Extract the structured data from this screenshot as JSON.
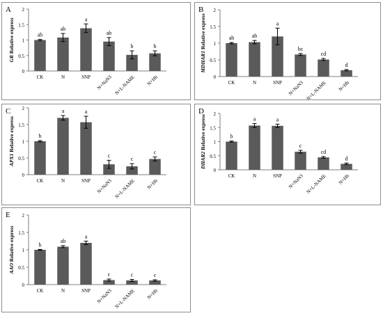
{
  "chart_data": [
    {
      "type": "bar",
      "panel_label": "A",
      "ylabel": "GR Relative express",
      "ylabel_italic_part": "GR",
      "ylabel_rest": " Relative express",
      "categories": [
        "CK",
        "N",
        "SNP",
        "N+NaN3",
        "N+L-NAME",
        "N+Hb"
      ],
      "values": [
        1.0,
        1.08,
        1.38,
        0.95,
        0.52,
        0.57
      ],
      "errors": [
        0.02,
        0.13,
        0.14,
        0.13,
        0.13,
        0.08
      ],
      "letters": [
        "ab",
        "ab",
        "a",
        "ab",
        "b",
        "b"
      ],
      "ylim": [
        0,
        2
      ],
      "yticks": [
        "0",
        "0.5",
        "1",
        "1.5",
        "2"
      ],
      "ytick_values": [
        0,
        0.5,
        1,
        1.5,
        2
      ]
    },
    {
      "type": "bar",
      "panel_label": "B",
      "ylabel": "MDHAR1 Relative express",
      "ylabel_italic_part": "MDHAR1",
      "ylabel_rest": " Relative express",
      "categories": [
        "CK",
        "N",
        "SNP",
        "N+NaN3",
        "N+L-NAME",
        "N+Hb"
      ],
      "values": [
        1.0,
        1.03,
        1.2,
        0.66,
        0.51,
        0.19
      ],
      "errors": [
        0.02,
        0.05,
        0.25,
        0.03,
        0.03,
        0.02
      ],
      "letters": [
        "ab",
        "ab",
        "a",
        "bc",
        "cd",
        "d"
      ],
      "ylim": [
        0,
        2
      ],
      "yticks": [
        "0",
        "0.5",
        "1",
        "1.5",
        "2"
      ],
      "ytick_values": [
        0,
        0.5,
        1,
        1.5,
        2
      ]
    },
    {
      "type": "bar",
      "panel_label": "C",
      "ylabel": "APX1 Relative express",
      "ylabel_italic_part": "APX1",
      "ylabel_rest": " Relative express",
      "categories": [
        "CK",
        "N",
        "SNP",
        "N+NaN3",
        "N+L-NAME",
        "N+Hb"
      ],
      "values": [
        1.0,
        1.7,
        1.57,
        0.31,
        0.25,
        0.47
      ],
      "errors": [
        0.02,
        0.07,
        0.18,
        0.12,
        0.08,
        0.06
      ],
      "letters": [
        "b",
        "a",
        "a",
        "c",
        "c",
        "c"
      ],
      "ylim": [
        0,
        2
      ],
      "yticks": [
        "0",
        "0.5",
        "1",
        "1.5",
        "2"
      ],
      "ytick_values": [
        0,
        0.5,
        1,
        1.5,
        2
      ]
    },
    {
      "type": "bar",
      "panel_label": "D",
      "ylabel": "DHAR2 Relative express",
      "ylabel_italic_part": "DHAR2",
      "ylabel_rest": " Relative express",
      "categories": [
        "CK",
        "N",
        "SNP",
        "N+NaN3",
        "N+L-NAME",
        "N+Hb"
      ],
      "values": [
        1.0,
        1.57,
        1.56,
        0.64,
        0.44,
        0.21
      ],
      "errors": [
        0.02,
        0.07,
        0.06,
        0.05,
        0.03,
        0.03
      ],
      "letters": [
        "b",
        "a",
        "a",
        "c",
        "cd",
        "d"
      ],
      "ylim": [
        0,
        2
      ],
      "yticks": [
        "0",
        "0.5",
        "1",
        "1.5",
        "2"
      ],
      "ytick_values": [
        0,
        0.5,
        1,
        1.5,
        2
      ]
    },
    {
      "type": "bar",
      "panel_label": "E",
      "ylabel": "AAO Relative express",
      "ylabel_italic_part": "AAO",
      "ylabel_rest": " Relative express",
      "categories": [
        "CK",
        "N",
        "SNP",
        "N+NaN3",
        "N+L-NAME",
        "N+Hb"
      ],
      "values": [
        1.0,
        1.09,
        1.2,
        0.13,
        0.12,
        0.12
      ],
      "errors": [
        0.01,
        0.03,
        0.05,
        0.03,
        0.03,
        0.02
      ],
      "letters": [
        "b",
        "ab",
        "a",
        "c",
        "c",
        "c"
      ],
      "ylim": [
        0,
        2
      ],
      "yticks": [
        "0",
        "0.5",
        "1",
        "1.5",
        "2"
      ],
      "ytick_values": [
        0,
        0.5,
        1,
        1.5,
        2
      ]
    }
  ],
  "colors": {
    "bar": "#5a5a5a",
    "axis": "#7f7f7f",
    "text": "#000000",
    "border": "#8c8c8c"
  }
}
